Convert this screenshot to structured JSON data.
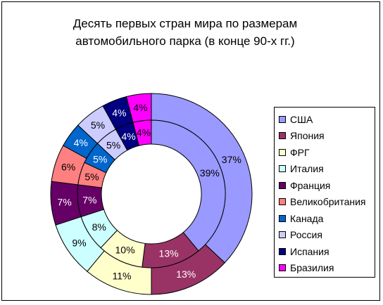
{
  "chart_data": {
    "type": "donut",
    "title": "Десять первых стран мира по размерам автомобильного парка (в конце 90-х гг.)",
    "title_lines": [
      "Десять первых стран мира по размерам",
      "автомобильного парка (в конце 90-х гг.)"
    ],
    "categories": [
      "США",
      "Япония",
      "ФРГ",
      "Италия",
      "Франция",
      "Великобритания",
      "Канада",
      "Россия",
      "Испания",
      "Бразилия"
    ],
    "colors": [
      "#9999FF",
      "#993366",
      "#FFFFCC",
      "#CCFFFF",
      "#660066",
      "#FF8080",
      "#0066CC",
      "#CCCCFF",
      "#000080",
      "#FF00FF"
    ],
    "series": [
      {
        "ring": "outer",
        "values": [
          37,
          13,
          11,
          9,
          7,
          6,
          4,
          5,
          4,
          4
        ]
      },
      {
        "ring": "inner",
        "values": [
          39,
          13,
          10,
          8,
          7,
          5,
          5,
          5,
          4,
          4
        ]
      }
    ],
    "value_suffix": "%",
    "legend_position": "right"
  }
}
